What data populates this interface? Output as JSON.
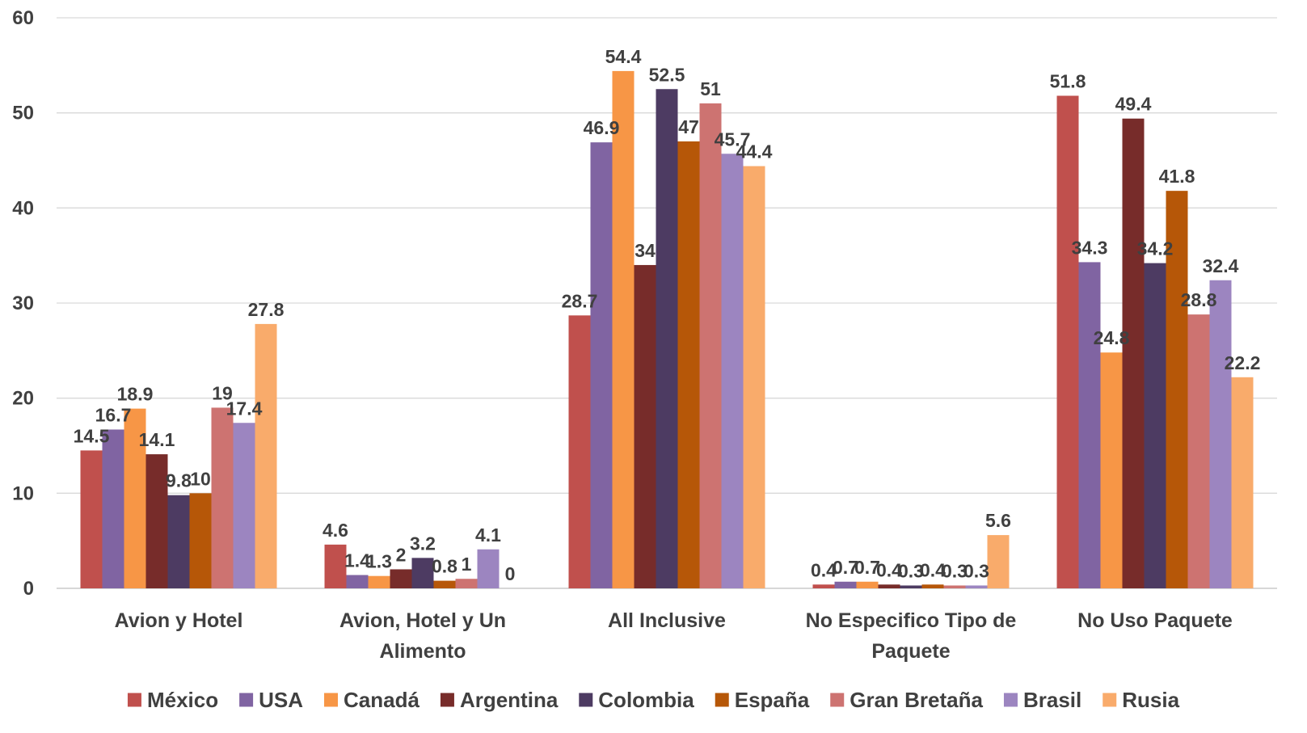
{
  "chart_data": {
    "type": "bar",
    "title": "",
    "xlabel": "",
    "ylabel": "",
    "ylim": [
      0,
      60
    ],
    "y_ticks": [
      "0",
      "10",
      "20",
      "30",
      "40",
      "50",
      "60"
    ],
    "grid": "horizontal",
    "legend_position": "bottom",
    "categories": [
      [
        "Avion y Hotel"
      ],
      [
        "Avion, Hotel y Un",
        "Alimento"
      ],
      [
        "All Inclusive"
      ],
      [
        "No Especifico Tipo de",
        "Paquete"
      ],
      [
        "No Uso Paquete"
      ]
    ],
    "series": [
      {
        "name": "México",
        "color": "#C0504D",
        "values": [
          14.5,
          4.6,
          28.7,
          0.4,
          51.8
        ]
      },
      {
        "name": "USA",
        "color": "#8064A2",
        "values": [
          16.7,
          1.4,
          46.9,
          0.7,
          34.3
        ]
      },
      {
        "name": "Canadá",
        "color": "#F79646",
        "values": [
          18.9,
          1.3,
          54.4,
          0.7,
          24.8
        ]
      },
      {
        "name": "Argentina",
        "color": "#772C2A",
        "values": [
          14.1,
          2,
          34,
          0.4,
          49.4
        ]
      },
      {
        "name": "Colombia",
        "color": "#4D3B62",
        "values": [
          9.8,
          3.2,
          52.5,
          0.3,
          34.2
        ]
      },
      {
        "name": "España",
        "color": "#B65708",
        "values": [
          10,
          0.8,
          47,
          0.4,
          41.8
        ]
      },
      {
        "name": "Gran Bretaña",
        "color": "#CD7371",
        "values": [
          19,
          1,
          51,
          0.3,
          28.8
        ]
      },
      {
        "name": "Brasil",
        "color": "#9C85C0",
        "values": [
          17.4,
          4.1,
          45.7,
          0.3,
          32.4
        ]
      },
      {
        "name": "Rusia",
        "color": "#F9AB6B",
        "values": [
          27.8,
          0,
          44.4,
          5.6,
          22.2
        ]
      }
    ]
  }
}
